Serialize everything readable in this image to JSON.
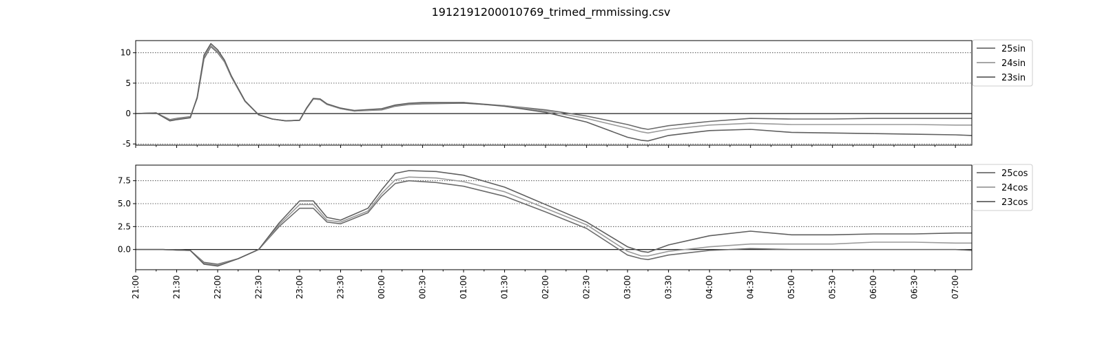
{
  "title": "1912191200010769_trimed_rmmissing.csv",
  "chart_data": [
    {
      "type": "line",
      "title": "",
      "xlabel": "",
      "ylabel": "",
      "x_ticks": [
        "21:00",
        "21:30",
        "22:00",
        "22:30",
        "23:00",
        "23:30",
        "00:00",
        "00:30",
        "01:00",
        "01:30",
        "02:00",
        "02:30",
        "03:00",
        "03:30",
        "04:00",
        "04:30",
        "05:00",
        "05:30",
        "06:00",
        "06:30",
        "07:00"
      ],
      "xlim": [
        "21:00",
        "07:12"
      ],
      "ylim": [
        -5.2,
        12
      ],
      "y_ticks": [
        -5,
        0,
        5,
        10
      ],
      "grid": "horizontal dotted",
      "zero_line": true,
      "legend": "outside top-right",
      "x": [
        "21:00",
        "21:15",
        "21:25",
        "21:30",
        "21:40",
        "21:45",
        "21:50",
        "21:55",
        "22:00",
        "22:05",
        "22:10",
        "22:20",
        "22:30",
        "22:40",
        "22:50",
        "23:00",
        "23:05",
        "23:10",
        "23:15",
        "23:20",
        "23:30",
        "23:40",
        "24:00",
        "24:10",
        "24:20",
        "24:30",
        "25:00",
        "25:30",
        "26:00",
        "26:30",
        "27:00",
        "27:10",
        "27:15",
        "27:30",
        "28:00",
        "28:30",
        "29:00",
        "29:30",
        "30:00",
        "30:30",
        "31:00",
        "31:12"
      ],
      "series": [
        {
          "name": "25sin",
          "color": "#6b6b6b",
          "values": [
            0,
            0.1,
            -1.0,
            -0.8,
            -0.5,
            2.5,
            9.0,
            11.0,
            10.0,
            8.5,
            6.0,
            2.0,
            -0.2,
            -0.9,
            -1.2,
            -1.1,
            0.8,
            2.4,
            2.3,
            1.5,
            0.8,
            0.4,
            0.6,
            1.2,
            1.5,
            1.6,
            1.7,
            1.3,
            0.6,
            -0.4,
            -1.8,
            -2.4,
            -2.6,
            -2.0,
            -1.3,
            -0.8,
            -0.9,
            -0.9,
            -0.8,
            -0.8,
            -0.8,
            -0.8
          ]
        },
        {
          "name": "24sin",
          "color": "#9a9a9a",
          "values": [
            0,
            0.1,
            -1.1,
            -0.9,
            -0.6,
            2.6,
            9.3,
            11.2,
            10.2,
            8.6,
            6.0,
            2.0,
            -0.2,
            -0.9,
            -1.2,
            -1.1,
            0.8,
            2.4,
            2.3,
            1.5,
            0.8,
            0.4,
            0.7,
            1.3,
            1.6,
            1.7,
            1.8,
            1.3,
            0.4,
            -0.8,
            -2.4,
            -3.0,
            -3.2,
            -2.6,
            -1.9,
            -1.6,
            -1.8,
            -1.8,
            -1.8,
            -1.8,
            -1.9,
            -1.9
          ]
        },
        {
          "name": "23sin",
          "color": "#5e5e5e",
          "values": [
            0,
            0.1,
            -1.2,
            -1.0,
            -0.7,
            2.7,
            9.6,
            11.5,
            10.5,
            8.8,
            6.2,
            2.1,
            -0.2,
            -0.9,
            -1.2,
            -1.1,
            0.9,
            2.5,
            2.4,
            1.6,
            0.9,
            0.5,
            0.8,
            1.4,
            1.7,
            1.8,
            1.8,
            1.2,
            0.2,
            -1.4,
            -3.9,
            -4.4,
            -4.5,
            -3.6,
            -2.8,
            -2.6,
            -3.1,
            -3.2,
            -3.3,
            -3.4,
            -3.5,
            -3.6
          ]
        }
      ]
    },
    {
      "type": "line",
      "title": "",
      "xlabel": "",
      "ylabel": "",
      "x_ticks": [
        "21:00",
        "21:30",
        "22:00",
        "22:30",
        "23:00",
        "23:30",
        "00:00",
        "00:30",
        "01:00",
        "01:30",
        "02:00",
        "02:30",
        "03:00",
        "03:30",
        "04:00",
        "04:30",
        "05:00",
        "05:30",
        "06:00",
        "06:30",
        "07:00"
      ],
      "xlim": [
        "21:00",
        "07:12"
      ],
      "ylim": [
        -2.2,
        9.2
      ],
      "y_ticks": [
        0.0,
        2.5,
        5.0,
        7.5
      ],
      "grid": "horizontal dotted",
      "zero_line": true,
      "legend": "outside top-right",
      "x": [
        "21:00",
        "21:20",
        "21:40",
        "21:50",
        "22:00",
        "22:15",
        "22:30",
        "22:45",
        "23:00",
        "23:10",
        "23:20",
        "23:30",
        "23:50",
        "24:00",
        "24:10",
        "24:20",
        "24:40",
        "25:00",
        "25:30",
        "26:00",
        "26:30",
        "27:00",
        "27:10",
        "27:15",
        "27:30",
        "28:00",
        "28:30",
        "29:00",
        "29:30",
        "30:00",
        "30:30",
        "31:00",
        "31:12"
      ],
      "series": [
        {
          "name": "25cos",
          "color": "#6b6b6b",
          "values": [
            0,
            0,
            -0.1,
            -1.4,
            -1.6,
            -1.0,
            0.0,
            2.5,
            4.5,
            4.5,
            3.0,
            2.8,
            4.0,
            5.8,
            7.2,
            7.5,
            7.3,
            6.9,
            5.8,
            4.1,
            2.3,
            -0.6,
            -1.0,
            -1.1,
            -0.6,
            -0.1,
            0.1,
            0.0,
            0.0,
            0.0,
            0.0,
            0.0,
            -0.1
          ]
        },
        {
          "name": "24cos",
          "color": "#9a9a9a",
          "values": [
            0,
            0,
            -0.1,
            -1.5,
            -1.7,
            -1.0,
            0.0,
            2.7,
            4.9,
            4.9,
            3.2,
            3.0,
            4.2,
            6.1,
            7.6,
            7.9,
            7.8,
            7.4,
            6.3,
            4.5,
            2.7,
            -0.2,
            -0.7,
            -0.7,
            -0.2,
            0.3,
            0.6,
            0.6,
            0.6,
            0.8,
            0.8,
            0.7,
            0.7
          ]
        },
        {
          "name": "23cos",
          "color": "#5e5e5e",
          "values": [
            0,
            0,
            -0.1,
            -1.6,
            -1.8,
            -1.0,
            0.0,
            2.9,
            5.3,
            5.3,
            3.5,
            3.2,
            4.5,
            6.5,
            8.3,
            8.6,
            8.5,
            8.1,
            6.8,
            4.9,
            3.0,
            0.3,
            -0.2,
            -0.3,
            0.5,
            1.5,
            2.0,
            1.6,
            1.6,
            1.7,
            1.7,
            1.8,
            1.8
          ]
        }
      ]
    }
  ]
}
